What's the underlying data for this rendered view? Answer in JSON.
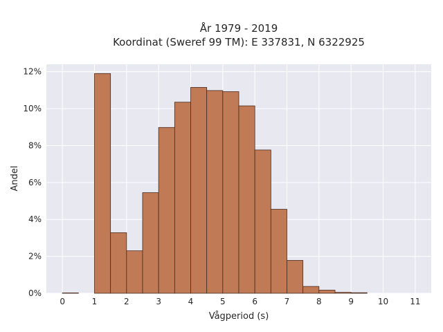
{
  "chart_data": {
    "type": "bar",
    "title_lines": [
      "År 1979 - 2019",
      "Koordinat (Sweref 99 TM): E 337831, N 6322925"
    ],
    "xlabel": "Vågperiod (s)",
    "ylabel": "Andel",
    "bin_width": 0.5,
    "bins": [
      {
        "start": 0.0,
        "value": 0.02
      },
      {
        "start": 0.5,
        "value": 0.0
      },
      {
        "start": 1.0,
        "value": 11.9
      },
      {
        "start": 1.5,
        "value": 3.28
      },
      {
        "start": 2.0,
        "value": 2.3
      },
      {
        "start": 2.5,
        "value": 5.45
      },
      {
        "start": 3.0,
        "value": 8.98
      },
      {
        "start": 3.5,
        "value": 10.35
      },
      {
        "start": 4.0,
        "value": 11.15
      },
      {
        "start": 4.5,
        "value": 10.98
      },
      {
        "start": 5.0,
        "value": 10.92
      },
      {
        "start": 5.5,
        "value": 10.15
      },
      {
        "start": 6.0,
        "value": 7.76
      },
      {
        "start": 6.5,
        "value": 4.55
      },
      {
        "start": 7.0,
        "value": 1.78
      },
      {
        "start": 7.5,
        "value": 0.37
      },
      {
        "start": 8.0,
        "value": 0.17
      },
      {
        "start": 8.5,
        "value": 0.05
      },
      {
        "start": 9.0,
        "value": 0.03
      }
    ],
    "xlim": [
      -0.5,
      11.5
    ],
    "ylim": [
      0,
      12.4
    ],
    "xticks": [
      0,
      1,
      2,
      3,
      4,
      5,
      6,
      7,
      8,
      9,
      10,
      11
    ],
    "xtick_labels": [
      "0",
      "1",
      "2",
      "3",
      "4",
      "5",
      "6",
      "7",
      "8",
      "9",
      "10",
      "11"
    ],
    "yticks": [
      0,
      2,
      4,
      6,
      8,
      10,
      12
    ],
    "ytick_labels": [
      "0%",
      "2%",
      "4%",
      "6%",
      "8%",
      "10%",
      "12%"
    ],
    "grid": true,
    "colors": {
      "bar_fill": "#c07b56",
      "bar_edge": "#4a2a1c",
      "plot_bg": "#e8e8f0",
      "grid": "#ffffff"
    }
  }
}
